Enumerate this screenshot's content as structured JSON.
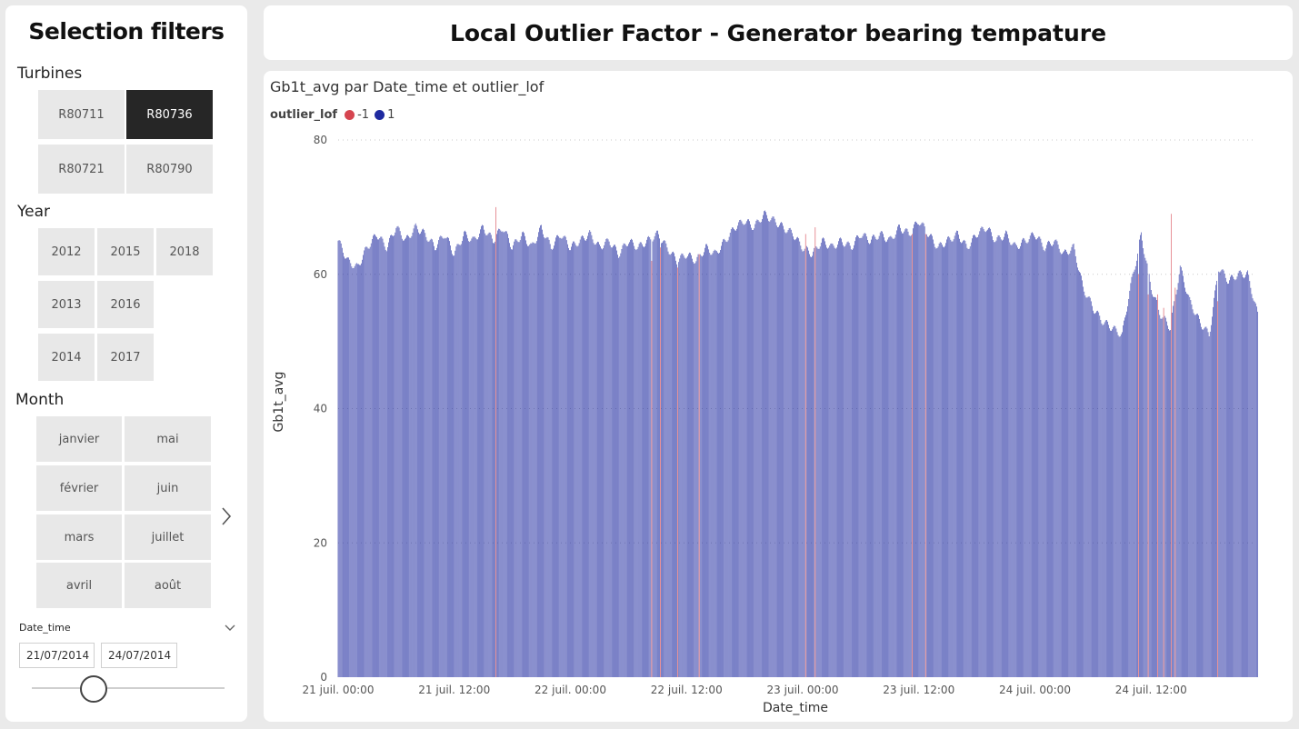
{
  "sidebar": {
    "title": "Selection filters",
    "turbines": {
      "label": "Turbines",
      "items": [
        "R80711",
        "R80736",
        "R80721",
        "R80790"
      ],
      "selected": "R80736"
    },
    "year": {
      "label": "Year",
      "items": [
        "2012",
        "2015",
        "2018",
        "2013",
        "2016",
        "2014",
        "2017"
      ]
    },
    "month": {
      "label": "Month",
      "items": [
        "janvier",
        "mai",
        "février",
        "juin",
        "mars",
        "juillet",
        "avril",
        "août"
      ]
    },
    "date_time": {
      "label": "Date_time",
      "start": "21/07/2014",
      "end": "24/07/2014"
    }
  },
  "header": {
    "title": "Local Outlier Factor - Generator bearing tempature"
  },
  "chart": {
    "title": "Gb1t_avg par Date_time et outlier_lof",
    "legend_title": "outlier_lof",
    "colors": {
      "outlier": "#d64550",
      "inlier": "#1f2aa0"
    }
  },
  "chart_data": {
    "type": "bar",
    "xlabel": "Date_time",
    "ylabel": "Gb1t_avg",
    "ylim": [
      0,
      80
    ],
    "yticks": [
      0,
      20,
      40,
      60,
      80
    ],
    "x_start": "2014-07-21 00:00",
    "x_end": "2014-07-25 00:00",
    "xticks": [
      "21 juil. 00:00",
      "21 juil. 12:00",
      "22 juil. 00:00",
      "22 juil. 12:00",
      "23 juil. 00:00",
      "23 juil. 12:00",
      "24 juil. 00:00",
      "24 juil. 12:00"
    ],
    "legend": [
      "-1",
      "1"
    ],
    "series": [
      {
        "name": "1",
        "anchors": [
          [
            "21/07 00:00",
            65
          ],
          [
            "21/07 01:00",
            62
          ],
          [
            "21/07 02:00",
            61
          ],
          [
            "21/07 03:00",
            64
          ],
          [
            "21/07 04:00",
            66
          ],
          [
            "21/07 05:00",
            64
          ],
          [
            "21/07 06:00",
            67
          ],
          [
            "21/07 07:00",
            65
          ],
          [
            "21/07 08:00",
            67
          ],
          [
            "21/07 09:00",
            66
          ],
          [
            "21/07 10:00",
            64
          ],
          [
            "21/07 11:00",
            66
          ],
          [
            "21/07 12:00",
            63
          ],
          [
            "21/07 13:00",
            66
          ],
          [
            "21/07 14:00",
            65
          ],
          [
            "21/07 15:00",
            67
          ],
          [
            "21/07 16:00",
            65
          ],
          [
            "21/07 17:00",
            67
          ],
          [
            "21/07 18:00",
            64
          ],
          [
            "21/07 19:00",
            66
          ],
          [
            "21/07 20:00",
            64
          ],
          [
            "21/07 21:00",
            67
          ],
          [
            "21/07 22:00",
            64
          ],
          [
            "21/07 23:00",
            66
          ],
          [
            "22/07 00:00",
            64
          ],
          [
            "22/07 01:00",
            65
          ],
          [
            "22/07 02:00",
            66
          ],
          [
            "22/07 03:00",
            64
          ],
          [
            "22/07 04:00",
            65
          ],
          [
            "22/07 05:00",
            63
          ],
          [
            "22/07 06:00",
            65
          ],
          [
            "22/07 07:00",
            64
          ],
          [
            "22/07 08:00",
            65
          ],
          [
            "22/07 09:00",
            66
          ],
          [
            "22/07 10:00",
            64
          ],
          [
            "22/07 11:00",
            62
          ],
          [
            "22/07 12:00",
            63
          ],
          [
            "22/07 13:00",
            62
          ],
          [
            "22/07 14:00",
            64
          ],
          [
            "22/07 15:00",
            63
          ],
          [
            "22/07 16:00",
            65
          ],
          [
            "22/07 17:00",
            67
          ],
          [
            "22/07 18:00",
            68
          ],
          [
            "22/07 19:00",
            67
          ],
          [
            "22/07 20:00",
            69
          ],
          [
            "22/07 21:00",
            68
          ],
          [
            "22/07 22:00",
            67
          ],
          [
            "22/07 23:00",
            66
          ],
          [
            "23/07 00:00",
            64
          ],
          [
            "23/07 01:00",
            63
          ],
          [
            "23/07 02:00",
            65
          ],
          [
            "23/07 03:00",
            64
          ],
          [
            "23/07 04:00",
            65
          ],
          [
            "23/07 05:00",
            64
          ],
          [
            "23/07 06:00",
            66
          ],
          [
            "23/07 07:00",
            65
          ],
          [
            "23/07 08:00",
            66
          ],
          [
            "23/07 09:00",
            65
          ],
          [
            "23/07 10:00",
            67
          ],
          [
            "23/07 11:00",
            66
          ],
          [
            "23/07 12:00",
            68
          ],
          [
            "23/07 13:00",
            66
          ],
          [
            "23/07 14:00",
            64
          ],
          [
            "23/07 15:00",
            65
          ],
          [
            "23/07 16:00",
            66
          ],
          [
            "23/07 17:00",
            64
          ],
          [
            "23/07 18:00",
            66
          ],
          [
            "23/07 19:00",
            67
          ],
          [
            "23/07 20:00",
            65
          ],
          [
            "23/07 21:00",
            66
          ],
          [
            "23/07 22:00",
            64
          ],
          [
            "23/07 23:00",
            65
          ],
          [
            "24/07 00:00",
            66
          ],
          [
            "24/07 01:00",
            64
          ],
          [
            "24/07 02:00",
            65
          ],
          [
            "24/07 03:00",
            63
          ],
          [
            "24/07 04:00",
            64
          ],
          [
            "24/07 05:00",
            58
          ],
          [
            "24/07 06:00",
            55
          ],
          [
            "24/07 07:00",
            53
          ],
          [
            "24/07 08:00",
            52
          ],
          [
            "24/07 09:00",
            51
          ],
          [
            "24/07 10:00",
            59
          ],
          [
            "24/07 11:00",
            66
          ],
          [
            "24/07 12:00",
            58
          ],
          [
            "24/07 13:00",
            54
          ],
          [
            "24/07 14:00",
            52
          ],
          [
            "24/07 15:00",
            61
          ],
          [
            "24/07 16:00",
            56
          ],
          [
            "24/07 17:00",
            53
          ],
          [
            "24/07 18:00",
            51
          ],
          [
            "24/07 19:00",
            61
          ],
          [
            "24/07 20:00",
            59
          ],
          [
            "24/07 21:00",
            60
          ],
          [
            "24/07 22:00",
            60
          ],
          [
            "24/07 23:00",
            54
          ]
        ]
      },
      {
        "name": "-1",
        "points": [
          [
            "21/07 16:18",
            70
          ],
          [
            "22/07 08:24",
            62
          ],
          [
            "22/07 09:18",
            64
          ],
          [
            "22/07 11:06",
            61
          ],
          [
            "22/07 13:18",
            63
          ],
          [
            "23/07 00:18",
            66
          ],
          [
            "23/07 01:18",
            67
          ],
          [
            "23/07 11:18",
            66
          ],
          [
            "23/07 12:42",
            66
          ],
          [
            "24/07 10:42",
            60
          ],
          [
            "24/07 11:42",
            57
          ],
          [
            "24/07 12:42",
            57
          ],
          [
            "24/07 13:18",
            55
          ],
          [
            "24/07 14:06",
            69
          ],
          [
            "24/07 14:30",
            58
          ],
          [
            "24/07 18:54",
            56
          ]
        ]
      }
    ]
  }
}
